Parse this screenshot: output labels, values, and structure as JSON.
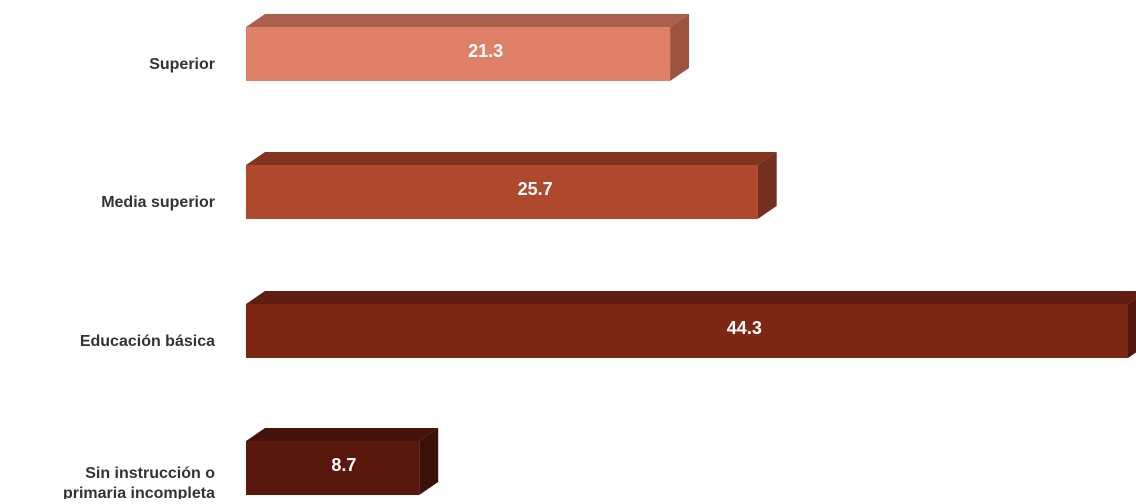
{
  "chart_data": {
    "type": "bar",
    "orientation": "horizontal",
    "style": "3d",
    "categories": [
      "Superior",
      "Media superior",
      "Educación básica",
      "Sin instrucción o primaria incompleta"
    ],
    "category_lines": [
      [
        "Superior"
      ],
      [
        "Media superior"
      ],
      [
        "Educación básica"
      ],
      [
        "Sin instrucción o",
        "primaria incompleta"
      ]
    ],
    "values": [
      21.3,
      25.7,
      44.3,
      8.7
    ],
    "value_labels": [
      "21.3",
      "25.7",
      "44.3",
      "8.7"
    ],
    "xlim": [
      0,
      44.3
    ],
    "title": "",
    "xlabel": "",
    "ylabel": "",
    "grid": false,
    "colors": [
      {
        "front": "#df8068",
        "top": "#ac5f4b",
        "side": "#9c5342"
      },
      {
        "front": "#ae492d",
        "top": "#833421",
        "side": "#74301e"
      },
      {
        "front": "#7d2815",
        "top": "#5f1e0f",
        "side": "#4f1a0d"
      },
      {
        "front": "#5a170e",
        "top": "#44130a",
        "side": "#3a1008"
      }
    ],
    "value_label_color": "#ffffff",
    "category_label_color": "#333333"
  }
}
